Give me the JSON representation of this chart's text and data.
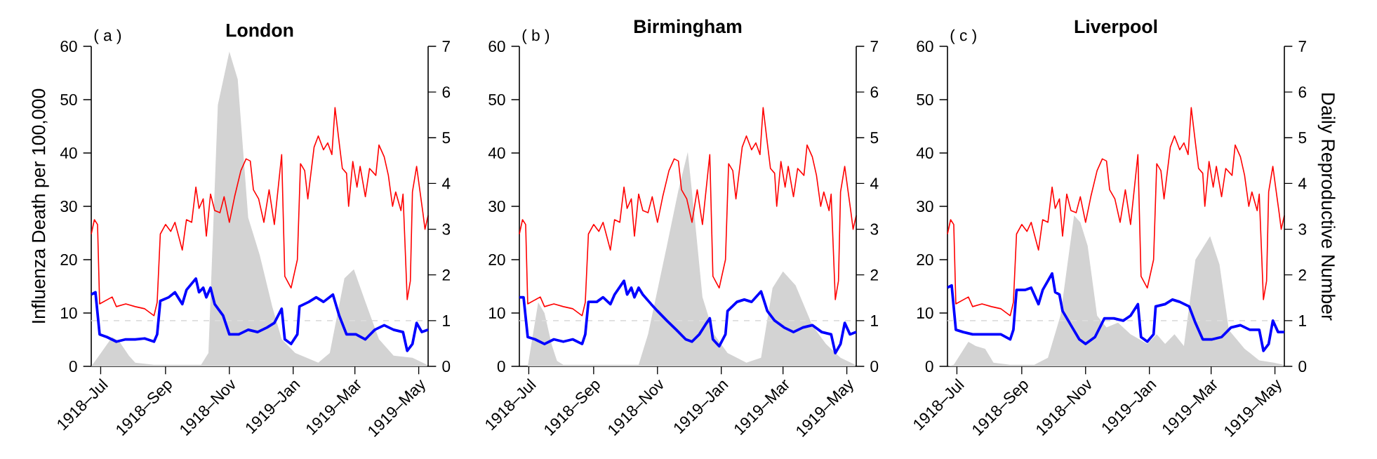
{
  "chart_data": [
    {
      "type": "line",
      "title": "London",
      "annotations": [
        "( a )"
      ],
      "ylabel": "Influenza Death per 100,000",
      "xlim": [
        "1918-06-22",
        "1919-05-10"
      ],
      "xticks": [
        {
          "value": "1918-07-01",
          "label": "1918–Jul"
        },
        {
          "value": "1918-09-01",
          "label": "1918–Sep"
        },
        {
          "value": "1918-11-01",
          "label": "1918–Nov"
        },
        {
          "value": "1919-01-01",
          "label": "1919–Jan"
        },
        {
          "value": "1919-03-01",
          "label": "1919–Mar"
        },
        {
          "value": "1919-05-01",
          "label": "1919–May"
        }
      ],
      "ylim": [
        0,
        60
      ],
      "yticks": [
        0,
        10,
        20,
        30,
        40,
        50,
        60
      ],
      "y2lim": [
        0,
        7
      ],
      "y2ticks": [
        0,
        1,
        2,
        3,
        4,
        5,
        6,
        7
      ],
      "ref_lines": [
        {
          "axis": "y2",
          "value": 1,
          "color": "#dddddd",
          "line_style": "dashed"
        }
      ],
      "series": [
        {
          "type": "area",
          "color": "#d3d3d3",
          "x": [
            "1918-06-22",
            "1918-06-28",
            "1918-07-12",
            "1918-07-19",
            "1918-07-28",
            "1918-08-03",
            "1918-08-21",
            "1918-10-05",
            "1918-10-12",
            "1918-10-21",
            "1918-11-01",
            "1918-11-09",
            "1918-11-19",
            "1918-11-30",
            "1918-12-12",
            "1918-12-21",
            "1919-01-03",
            "1919-01-25",
            "1919-02-05",
            "1919-02-19",
            "1919-02-28",
            "1919-03-11",
            "1919-03-24",
            "1919-04-07",
            "1919-04-25",
            "1919-05-09"
          ],
          "values": [
            0,
            1.6,
            5.5,
            4.6,
            2.0,
            0.7,
            0.3,
            0.3,
            2.5,
            49,
            59,
            53.8,
            27.9,
            20.9,
            11.2,
            5.1,
            2.5,
            0.7,
            2.5,
            16.5,
            18.2,
            12.1,
            5.1,
            2.0,
            1.6,
            0.3
          ]
        },
        {
          "type": "line",
          "color": "#ff0000",
          "x": [
            "1918-06-22",
            "1918-06-25",
            "1918-06-28",
            "1918-06-30",
            "1918-07-12",
            "1918-07-16",
            "1918-07-25",
            "1918-08-03",
            "1918-08-12",
            "1918-08-21",
            "1918-08-24",
            "1918-08-27",
            "1918-09-01",
            "1918-09-06",
            "1918-09-10",
            "1918-09-17",
            "1918-09-21",
            "1918-09-26",
            "1918-09-30",
            "1918-10-03",
            "1918-10-07",
            "1918-10-10",
            "1918-10-14",
            "1918-10-18",
            "1918-10-23",
            "1918-10-27",
            "1918-11-01",
            "1918-11-06",
            "1918-11-12",
            "1918-11-17",
            "1918-11-21",
            "1918-11-24",
            "1918-11-29",
            "1918-12-04",
            "1918-12-09",
            "1918-12-14",
            "1918-12-21",
            "1918-12-24",
            "1918-12-30",
            "1919-01-05",
            "1919-01-08",
            "1919-01-12",
            "1919-01-15",
            "1919-01-21",
            "1919-01-25",
            "1919-01-30",
            "1919-02-03",
            "1919-02-07",
            "1919-02-10",
            "1919-02-14",
            "1919-02-17",
            "1919-02-21",
            "1919-02-23",
            "1919-02-27",
            "1919-03-03",
            "1919-03-06",
            "1919-03-11",
            "1919-03-15",
            "1919-03-21",
            "1919-03-24",
            "1919-03-29",
            "1919-04-02",
            "1919-04-06",
            "1919-04-09",
            "1919-04-14",
            "1919-04-16",
            "1919-04-20",
            "1919-04-23",
            "1919-04-25",
            "1919-04-29",
            "1919-05-02",
            "1919-05-05",
            "1919-05-07",
            "1919-05-10"
          ],
          "values": [
            24.8,
            27.5,
            26.6,
            11.7,
            13.0,
            11.2,
            11.7,
            11.2,
            10.8,
            9.5,
            12.0,
            24.8,
            26.6,
            25.3,
            27.0,
            21.8,
            27.5,
            27.0,
            33.6,
            29.6,
            31.4,
            24.4,
            32.3,
            29.2,
            28.8,
            31.8,
            27.0,
            31.8,
            36.7,
            38.9,
            38.5,
            33.1,
            31.4,
            27.0,
            33.1,
            26.6,
            39.7,
            16.9,
            14.7,
            20.0,
            38.0,
            36.7,
            31.4,
            41.1,
            43.2,
            40.6,
            41.9,
            39.7,
            48.5,
            41.9,
            37.1,
            36.2,
            30.0,
            38.4,
            33.6,
            37.5,
            31.8,
            37.1,
            35.8,
            41.5,
            39.3,
            35.8,
            30.0,
            32.7,
            29.2,
            32.3,
            12.5,
            16.0,
            32.7,
            37.5,
            33.1,
            28.8,
            25.7,
            28.3
          ]
        },
        {
          "type": "line",
          "axis": "y2",
          "color": "#0000ff",
          "x": [
            "1918-06-22",
            "1918-06-26",
            "1918-06-30",
            "1918-07-07",
            "1918-07-16",
            "1918-07-25",
            "1918-08-03",
            "1918-08-12",
            "1918-08-21",
            "1918-08-24",
            "1918-08-27",
            "1918-09-04",
            "1918-09-10",
            "1918-09-17",
            "1918-09-21",
            "1918-09-30",
            "1918-10-03",
            "1918-10-07",
            "1918-10-10",
            "1918-10-14",
            "1918-10-18",
            "1918-10-26",
            "1918-11-01",
            "1918-11-10",
            "1918-11-19",
            "1918-11-28",
            "1918-12-07",
            "1918-12-14",
            "1918-12-21",
            "1918-12-24",
            "1918-12-30",
            "1919-01-05",
            "1919-01-07",
            "1919-01-16",
            "1919-01-23",
            "1919-01-30",
            "1919-02-08",
            "1919-02-14",
            "1919-02-21",
            "1919-03-02",
            "1919-03-11",
            "1919-03-20",
            "1919-03-29",
            "1919-04-07",
            "1919-04-16",
            "1919-04-20",
            "1919-04-25",
            "1919-04-29",
            "1919-05-04",
            "1919-05-10"
          ],
          "values": [
            1.57,
            1.62,
            0.7,
            0.64,
            0.54,
            0.59,
            0.59,
            0.61,
            0.54,
            0.7,
            1.43,
            1.51,
            1.62,
            1.36,
            1.67,
            1.92,
            1.62,
            1.72,
            1.51,
            1.72,
            1.36,
            1.11,
            0.7,
            0.7,
            0.8,
            0.75,
            0.85,
            0.95,
            1.26,
            0.59,
            0.49,
            0.7,
            1.31,
            1.41,
            1.51,
            1.41,
            1.57,
            1.11,
            0.7,
            0.7,
            0.59,
            0.8,
            0.9,
            0.8,
            0.75,
            0.34,
            0.49,
            0.95,
            0.75,
            0.8
          ]
        }
      ]
    },
    {
      "type": "line",
      "title": "Birmingham",
      "annotations": [
        "( b )"
      ],
      "xlim": [
        "1918-06-22",
        "1919-05-10"
      ],
      "xticks": [
        {
          "value": "1918-07-01",
          "label": "1918–Jul"
        },
        {
          "value": "1918-09-01",
          "label": "1918–Sep"
        },
        {
          "value": "1918-11-01",
          "label": "1918–Nov"
        },
        {
          "value": "1919-01-01",
          "label": "1919–Jan"
        },
        {
          "value": "1919-03-01",
          "label": "1919–Mar"
        },
        {
          "value": "1919-05-01",
          "label": "1919–May"
        }
      ],
      "ylim": [
        0,
        60
      ],
      "yticks": [
        0,
        10,
        20,
        30,
        40,
        50,
        60
      ],
      "y2lim": [
        0,
        7
      ],
      "y2ticks": [
        0,
        1,
        2,
        3,
        4,
        5,
        6,
        7
      ],
      "ref_lines": [
        {
          "axis": "y2",
          "value": 1,
          "color": "#dddddd",
          "line_style": "dashed"
        }
      ],
      "series": [
        {
          "type": "area",
          "color": "#d3d3d3",
          "x": [
            "1918-06-30",
            "1918-07-05",
            "1918-07-10",
            "1918-07-16",
            "1918-07-23",
            "1918-07-28",
            "1918-08-03",
            "1918-10-14",
            "1918-10-23",
            "1918-11-10",
            "1918-11-21",
            "1918-11-30",
            "1918-12-07",
            "1918-12-14",
            "1918-12-25",
            "1919-01-07",
            "1919-01-25",
            "1919-02-08",
            "1919-02-19",
            "1919-03-01",
            "1919-03-13",
            "1919-03-29",
            "1919-04-11",
            "1919-04-25",
            "1919-05-09"
          ],
          "values": [
            0,
            6,
            12,
            10,
            4,
            1,
            0.3,
            0.3,
            6,
            22.6,
            33,
            40.2,
            27,
            13,
            6,
            2.5,
            0.7,
            1.6,
            14.7,
            17.8,
            15.2,
            7.7,
            4.2,
            1.6,
            0.3
          ]
        },
        {
          "type": "line",
          "color": "#ff0000",
          "x": [
            "1918-06-22",
            "1918-06-25",
            "1918-06-28",
            "1918-06-30",
            "1918-07-12",
            "1918-07-16",
            "1918-07-25",
            "1918-08-03",
            "1918-08-12",
            "1918-08-21",
            "1918-08-24",
            "1918-08-27",
            "1918-09-01",
            "1918-09-06",
            "1918-09-10",
            "1918-09-17",
            "1918-09-21",
            "1918-09-26",
            "1918-09-30",
            "1918-10-03",
            "1918-10-07",
            "1918-10-10",
            "1918-10-14",
            "1918-10-18",
            "1918-10-23",
            "1918-10-27",
            "1918-11-01",
            "1918-11-06",
            "1918-11-12",
            "1918-11-17",
            "1918-11-21",
            "1918-11-24",
            "1918-11-29",
            "1918-12-04",
            "1918-12-09",
            "1918-12-14",
            "1918-12-21",
            "1918-12-24",
            "1918-12-30",
            "1919-01-05",
            "1919-01-08",
            "1919-01-12",
            "1919-01-15",
            "1919-01-21",
            "1919-01-25",
            "1919-01-30",
            "1919-02-03",
            "1919-02-07",
            "1919-02-10",
            "1919-02-14",
            "1919-02-17",
            "1919-02-21",
            "1919-02-23",
            "1919-02-27",
            "1919-03-03",
            "1919-03-06",
            "1919-03-11",
            "1919-03-15",
            "1919-03-21",
            "1919-03-24",
            "1919-03-29",
            "1919-04-02",
            "1919-04-06",
            "1919-04-09",
            "1919-04-14",
            "1919-04-16",
            "1919-04-20",
            "1919-04-23",
            "1919-04-25",
            "1919-04-29",
            "1919-05-02",
            "1919-05-05",
            "1919-05-07",
            "1919-05-10"
          ],
          "values": [
            24.8,
            27.5,
            26.6,
            11.7,
            13.0,
            11.2,
            11.7,
            11.2,
            10.8,
            9.5,
            12.0,
            24.8,
            26.6,
            25.3,
            27.0,
            21.8,
            27.5,
            27.0,
            33.6,
            29.6,
            31.4,
            24.4,
            32.3,
            29.2,
            28.8,
            31.8,
            27.0,
            31.8,
            36.7,
            38.9,
            38.5,
            33.1,
            31.4,
            27.0,
            33.1,
            26.6,
            39.7,
            16.9,
            14.7,
            20.0,
            38.0,
            36.7,
            31.4,
            41.1,
            43.2,
            40.6,
            41.9,
            39.7,
            48.5,
            41.9,
            37.1,
            36.2,
            30.0,
            38.4,
            33.6,
            37.5,
            31.8,
            37.1,
            35.8,
            41.5,
            39.3,
            35.8,
            30.0,
            32.7,
            29.2,
            32.3,
            12.5,
            16.0,
            32.7,
            37.5,
            33.1,
            28.8,
            25.7,
            28.3
          ]
        },
        {
          "type": "line",
          "axis": "y2",
          "color": "#0000ff",
          "x": [
            "1918-06-22",
            "1918-06-26",
            "1918-06-30",
            "1918-07-07",
            "1918-07-16",
            "1918-07-25",
            "1918-08-03",
            "1918-08-12",
            "1918-08-21",
            "1918-08-24",
            "1918-08-27",
            "1918-09-04",
            "1918-09-10",
            "1918-09-17",
            "1918-09-21",
            "1918-09-30",
            "1918-10-03",
            "1918-10-07",
            "1918-10-10",
            "1918-10-14",
            "1918-10-18",
            "1918-10-26",
            "1918-11-01",
            "1918-11-10",
            "1918-11-19",
            "1918-11-28",
            "1918-12-04",
            "1918-12-11",
            "1918-12-18",
            "1918-12-21",
            "1918-12-24",
            "1918-12-30",
            "1919-01-05",
            "1919-01-07",
            "1919-01-16",
            "1919-01-23",
            "1919-01-30",
            "1919-02-08",
            "1919-02-14",
            "1919-02-21",
            "1919-03-02",
            "1919-03-11",
            "1919-03-20",
            "1919-03-29",
            "1919-04-07",
            "1919-04-16",
            "1919-04-20",
            "1919-04-25",
            "1919-04-29",
            "1919-05-04",
            "1919-05-10"
          ],
          "values": [
            1.51,
            1.51,
            0.64,
            0.59,
            0.49,
            0.59,
            0.54,
            0.59,
            0.49,
            0.7,
            1.41,
            1.41,
            1.51,
            1.36,
            1.57,
            1.87,
            1.57,
            1.72,
            1.51,
            1.72,
            1.57,
            1.36,
            1.21,
            1.0,
            0.8,
            0.59,
            0.54,
            0.7,
            0.95,
            1.05,
            0.59,
            0.44,
            0.7,
            1.21,
            1.41,
            1.46,
            1.41,
            1.64,
            1.21,
            1.0,
            0.85,
            0.75,
            0.85,
            0.9,
            0.75,
            0.7,
            0.29,
            0.49,
            0.95,
            0.7,
            0.75
          ]
        }
      ]
    },
    {
      "type": "line",
      "title": "Liverpool",
      "annotations": [
        "( c )"
      ],
      "y2label": "Daily Reproductive Number",
      "xlim": [
        "1918-06-22",
        "1919-05-10"
      ],
      "xticks": [
        {
          "value": "1918-07-01",
          "label": "1918–Jul"
        },
        {
          "value": "1918-09-01",
          "label": "1918–Sep"
        },
        {
          "value": "1918-11-01",
          "label": "1918–Nov"
        },
        {
          "value": "1919-01-01",
          "label": "1919–Jan"
        },
        {
          "value": "1919-03-01",
          "label": "1919–Mar"
        },
        {
          "value": "1919-05-01",
          "label": "1919–May"
        }
      ],
      "ylim": [
        0,
        60
      ],
      "yticks": [
        0,
        10,
        20,
        30,
        40,
        50,
        60
      ],
      "y2lim": [
        0,
        7
      ],
      "y2ticks": [
        0,
        1,
        2,
        3,
        4,
        5,
        6,
        7
      ],
      "ref_lines": [
        {
          "axis": "y2",
          "value": 1,
          "color": "#dddddd",
          "line_style": "dashed"
        }
      ],
      "series": [
        {
          "type": "area",
          "color": "#d3d3d3",
          "x": [
            "1918-06-22",
            "1918-06-28",
            "1918-07-12",
            "1918-07-19",
            "1918-07-28",
            "1918-08-05",
            "1918-08-21",
            "1918-09-13",
            "1918-09-26",
            "1918-10-08",
            "1918-10-21",
            "1918-10-27",
            "1918-11-03",
            "1918-11-12",
            "1918-11-21",
            "1918-12-02",
            "1918-12-14",
            "1918-12-30",
            "1919-01-08",
            "1919-01-16",
            "1919-01-25",
            "1919-02-03",
            "1919-02-14",
            "1919-02-28",
            "1919-03-09",
            "1919-03-18",
            "1919-04-02",
            "1919-04-16",
            "1919-04-30",
            "1919-05-09"
          ],
          "values": [
            0,
            0.3,
            4.6,
            3.8,
            3.3,
            0.7,
            0.3,
            0.3,
            1.6,
            9.5,
            28.3,
            27,
            22.6,
            9.5,
            7.3,
            8.2,
            6,
            4.2,
            6,
            4.2,
            6,
            3.8,
            20,
            24.4,
            19.1,
            6.8,
            3.3,
            1.1,
            0.7,
            0.3
          ]
        },
        {
          "type": "line",
          "color": "#ff0000",
          "x": [
            "1918-06-22",
            "1918-06-25",
            "1918-06-28",
            "1918-06-30",
            "1918-07-12",
            "1918-07-16",
            "1918-07-25",
            "1918-08-03",
            "1918-08-12",
            "1918-08-21",
            "1918-08-24",
            "1918-08-27",
            "1918-09-01",
            "1918-09-06",
            "1918-09-10",
            "1918-09-17",
            "1918-09-21",
            "1918-09-26",
            "1918-09-30",
            "1918-10-03",
            "1918-10-07",
            "1918-10-10",
            "1918-10-14",
            "1918-10-18",
            "1918-10-23",
            "1918-10-27",
            "1918-11-01",
            "1918-11-06",
            "1918-11-12",
            "1918-11-17",
            "1918-11-21",
            "1918-11-24",
            "1918-11-29",
            "1918-12-04",
            "1918-12-09",
            "1918-12-14",
            "1918-12-21",
            "1918-12-24",
            "1918-12-30",
            "1919-01-05",
            "1919-01-08",
            "1919-01-12",
            "1919-01-15",
            "1919-01-21",
            "1919-01-25",
            "1919-01-30",
            "1919-02-03",
            "1919-02-07",
            "1919-02-10",
            "1919-02-14",
            "1919-02-17",
            "1919-02-21",
            "1919-02-23",
            "1919-02-27",
            "1919-03-03",
            "1919-03-06",
            "1919-03-11",
            "1919-03-15",
            "1919-03-21",
            "1919-03-24",
            "1919-03-29",
            "1919-04-02",
            "1919-04-06",
            "1919-04-09",
            "1919-04-14",
            "1919-04-16",
            "1919-04-20",
            "1919-04-23",
            "1919-04-25",
            "1919-04-29",
            "1919-05-02",
            "1919-05-05",
            "1919-05-07",
            "1919-05-10"
          ],
          "values": [
            24.8,
            27.5,
            26.6,
            11.7,
            13.0,
            11.2,
            11.7,
            11.2,
            10.8,
            9.5,
            12.0,
            24.8,
            26.6,
            25.3,
            27.0,
            21.8,
            27.5,
            27.0,
            33.6,
            29.6,
            31.4,
            24.4,
            32.3,
            29.2,
            28.8,
            31.8,
            27.0,
            31.8,
            36.7,
            38.9,
            38.5,
            33.1,
            31.4,
            27.0,
            33.1,
            26.6,
            39.7,
            16.9,
            14.7,
            20.0,
            38.0,
            36.7,
            31.4,
            41.1,
            43.2,
            40.6,
            41.9,
            39.7,
            48.5,
            41.9,
            37.1,
            36.2,
            30.0,
            38.4,
            33.6,
            37.5,
            31.8,
            37.1,
            35.8,
            41.5,
            39.3,
            35.8,
            30.0,
            32.7,
            29.2,
            32.3,
            12.5,
            16.0,
            32.7,
            37.5,
            33.1,
            28.8,
            25.7,
            28.3
          ]
        },
        {
          "type": "line",
          "axis": "y2",
          "color": "#0000ff",
          "x": [
            "1918-06-22",
            "1918-06-26",
            "1918-06-30",
            "1918-07-07",
            "1918-07-16",
            "1918-07-25",
            "1918-08-03",
            "1918-08-12",
            "1918-08-21",
            "1918-08-24",
            "1918-08-27",
            "1918-09-04",
            "1918-09-10",
            "1918-09-17",
            "1918-09-21",
            "1918-09-30",
            "1918-10-03",
            "1918-10-07",
            "1918-10-10",
            "1918-10-18",
            "1918-10-26",
            "1918-11-01",
            "1918-11-10",
            "1918-11-19",
            "1918-11-28",
            "1918-12-07",
            "1918-12-14",
            "1918-12-21",
            "1918-12-24",
            "1918-12-30",
            "1919-01-05",
            "1919-01-07",
            "1919-01-16",
            "1919-01-23",
            "1919-01-30",
            "1919-02-08",
            "1919-02-14",
            "1919-02-21",
            "1919-03-02",
            "1919-03-11",
            "1919-03-20",
            "1919-03-29",
            "1919-04-07",
            "1919-04-16",
            "1919-04-20",
            "1919-04-25",
            "1919-04-29",
            "1919-05-04",
            "1919-05-10"
          ],
          "values": [
            1.72,
            1.77,
            0.8,
            0.75,
            0.7,
            0.7,
            0.7,
            0.7,
            0.59,
            0.8,
            1.67,
            1.67,
            1.72,
            1.36,
            1.67,
            2.03,
            1.62,
            1.57,
            1.21,
            0.9,
            0.59,
            0.49,
            0.64,
            1.05,
            1.05,
            1.0,
            1.11,
            1.36,
            0.64,
            0.54,
            0.7,
            1.31,
            1.36,
            1.46,
            1.41,
            1.31,
            0.95,
            0.59,
            0.59,
            0.64,
            0.85,
            0.9,
            0.8,
            0.8,
            0.34,
            0.49,
            1.0,
            0.75,
            0.75
          ]
        }
      ]
    }
  ]
}
